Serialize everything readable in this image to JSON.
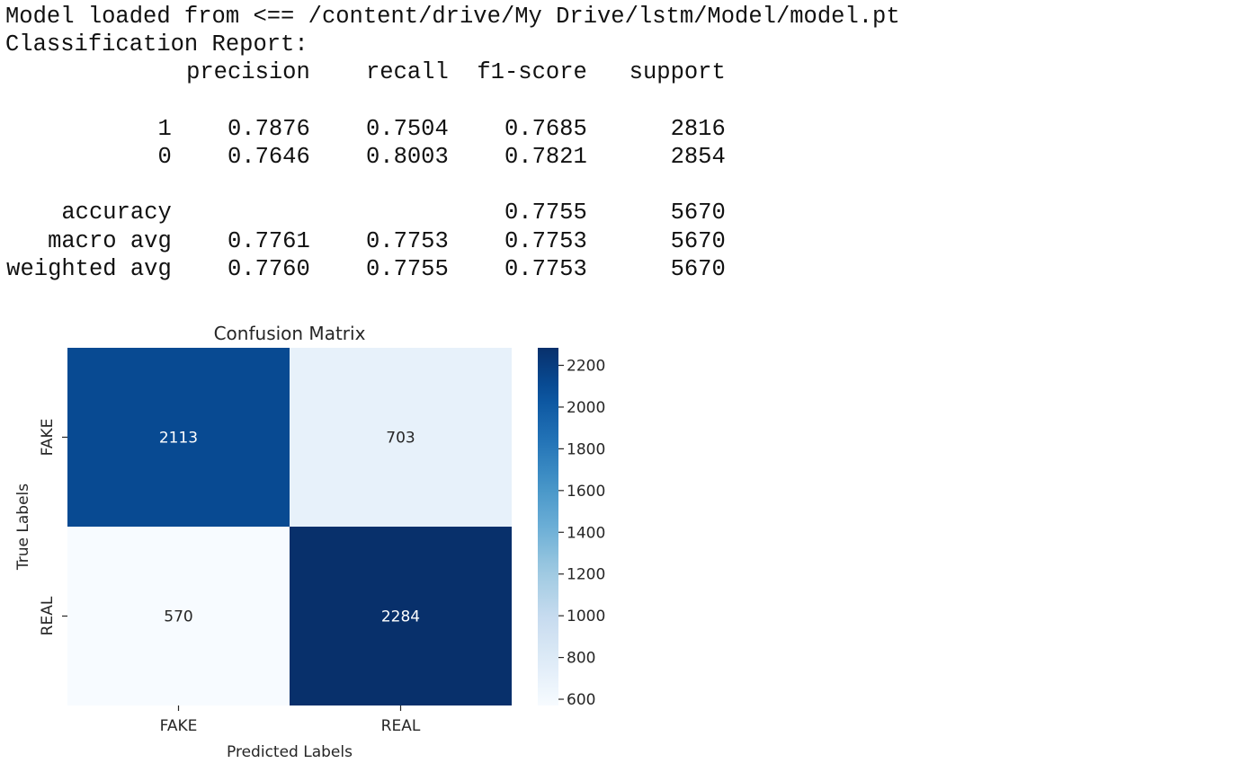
{
  "report": {
    "load_message": "Model loaded from <== /content/drive/My Drive/lstm/Model/model.pt",
    "title": "Classification Report:",
    "columns": [
      "precision",
      "recall",
      "f1-score",
      "support"
    ],
    "class_rows": [
      {
        "label": "1",
        "precision": "0.7876",
        "recall": "0.7504",
        "f1_score": "0.7685",
        "support": "2816"
      },
      {
        "label": "0",
        "precision": "0.7646",
        "recall": "0.8003",
        "f1_score": "0.7821",
        "support": "2854"
      }
    ],
    "summary_rows": [
      {
        "label": "accuracy",
        "precision": "",
        "recall": "",
        "f1_score": "0.7755",
        "support": "5670"
      },
      {
        "label": "macro avg",
        "precision": "0.7761",
        "recall": "0.7753",
        "f1_score": "0.7753",
        "support": "5670"
      },
      {
        "label": "weighted avg",
        "precision": "0.7760",
        "recall": "0.7755",
        "f1_score": "0.7753",
        "support": "5670"
      }
    ]
  },
  "chart_data": {
    "type": "heatmap",
    "title": "Confusion Matrix",
    "xlabel": "Predicted Labels",
    "ylabel": "True Labels",
    "x_categories": [
      "FAKE",
      "REAL"
    ],
    "y_categories": [
      "FAKE",
      "REAL"
    ],
    "values": [
      [
        2113,
        703
      ],
      [
        570,
        2284
      ]
    ],
    "colormap": "Blues",
    "colorbar_range": [
      570,
      2284
    ],
    "colorbar_ticks": [
      600,
      800,
      1000,
      1200,
      1400,
      1600,
      1800,
      2000,
      2200
    ],
    "annotation_light_color": "#ffffff",
    "annotation_dark_color": "#262626",
    "text_color": "#262626"
  }
}
